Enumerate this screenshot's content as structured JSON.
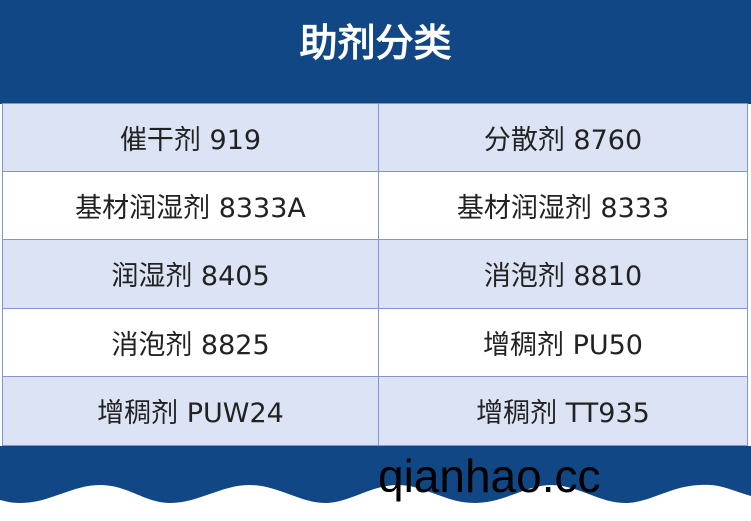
{
  "title": "助剂分类",
  "items": [
    [
      "催干剂 919",
      "分散剂 8760"
    ],
    [
      "基材润湿剂 8333A",
      "基材润湿剂 8333"
    ],
    [
      "润湿剂 8405",
      "消泡剂 8810"
    ],
    [
      "消泡剂 8825",
      "增稠剂 PU50"
    ],
    [
      "增稠剂 PUW24",
      "增稠剂 TT935"
    ]
  ],
  "watermark": "qianhao.cc",
  "colors": {
    "brand": "#114784",
    "row_alt": "#dbe3f4",
    "border": "#7f96d3"
  }
}
